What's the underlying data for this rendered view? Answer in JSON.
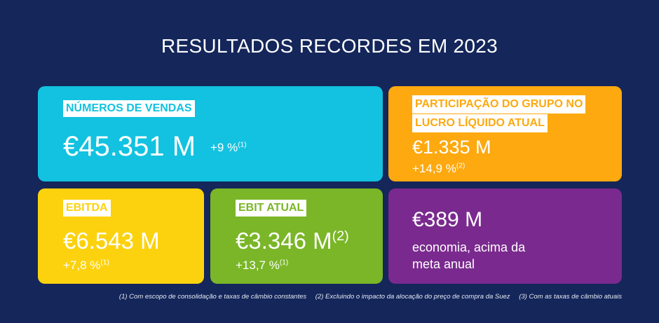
{
  "title": "RESULTADOS RECORDES EM 2023",
  "cards": {
    "sales": {
      "label": "NÚMEROS DE VENDAS",
      "value": "€45.351 M",
      "change": "+9 %",
      "change_note": "(1)",
      "color": "#12c2e0"
    },
    "net_income": {
      "label_line1": "PARTICIPAÇÃO DO GRUPO NO",
      "label_line2": "LUCRO LÍQUIDO ATUAL",
      "value": "€1.335 M",
      "change": "+14,9 %",
      "change_note": "(2)",
      "color": "#fda90f"
    },
    "ebitda": {
      "label": "EBITDA",
      "value": "€6.543 M",
      "change": "+7,8 %",
      "change_note": "(1)",
      "color": "#fcd20f"
    },
    "ebit": {
      "label": "EBIT ATUAL",
      "value": "€3.346 M",
      "value_note": "(2)",
      "change": "+13,7 %",
      "change_note": "(1)",
      "color": "#7ab627"
    },
    "economy": {
      "value": "€389 M",
      "desc_line1": "economia, acima da",
      "desc_line2": "meta anual",
      "color": "#7a2a8e"
    }
  },
  "footnotes": [
    "(1) Com escopo de consolidação e taxas de câmbio constantes",
    "(2) Excluindo o impacto da alocação do preço de compra da Suez",
    "(3) Com as taxas de câmbio atuais"
  ]
}
